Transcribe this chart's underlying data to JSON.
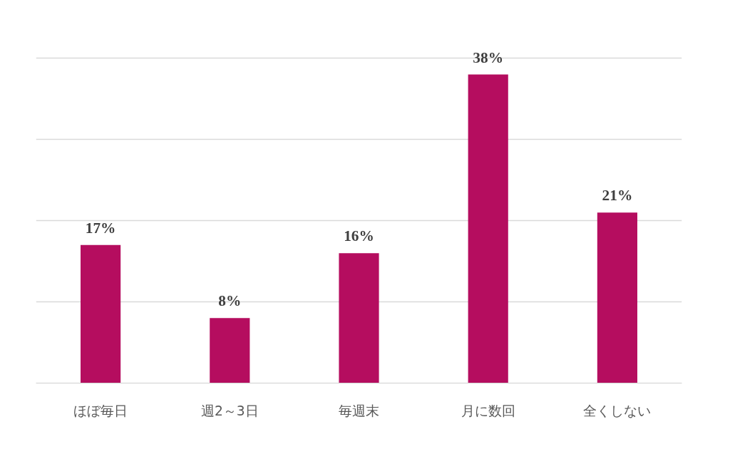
{
  "chart_data": {
    "type": "bar",
    "categories": [
      "ほぼ毎日",
      "週2～3日",
      "毎週末",
      "月に数回",
      "全くしない"
    ],
    "values": [
      17,
      8,
      16,
      38,
      21
    ],
    "color": "#b50d5f",
    "data_labels": true,
    "value_labels": [
      "17%",
      "8%",
      "16%",
      "38%",
      "21%"
    ],
    "grid": "y",
    "tick_labels": "x"
  }
}
